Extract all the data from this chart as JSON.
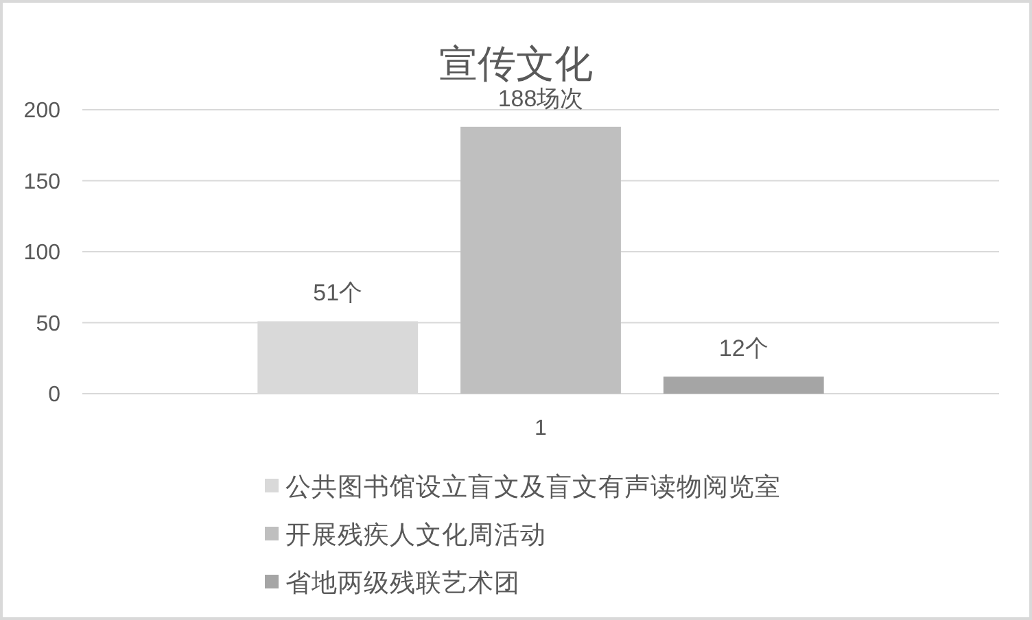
{
  "chart_data": {
    "type": "bar",
    "title": "宣传文化",
    "categories": [
      "1"
    ],
    "series": [
      {
        "name": "公共图书馆设立盲文及盲文有声读物阅览室",
        "color": "#d9d9d9",
        "values": [
          51
        ],
        "value_labels": [
          "51个"
        ]
      },
      {
        "name": "开展残疾人文化周活动",
        "color": "#bfbfbf",
        "values": [
          188
        ],
        "value_labels": [
          "188场次"
        ]
      },
      {
        "name": "省地两级残联艺术团",
        "color": "#a5a5a5",
        "values": [
          12
        ],
        "value_labels": [
          "12个"
        ]
      }
    ],
    "ylim": [
      0,
      200
    ],
    "yticks": [
      0,
      50,
      100,
      150,
      200
    ],
    "grid": "y",
    "legend": "bottom"
  }
}
